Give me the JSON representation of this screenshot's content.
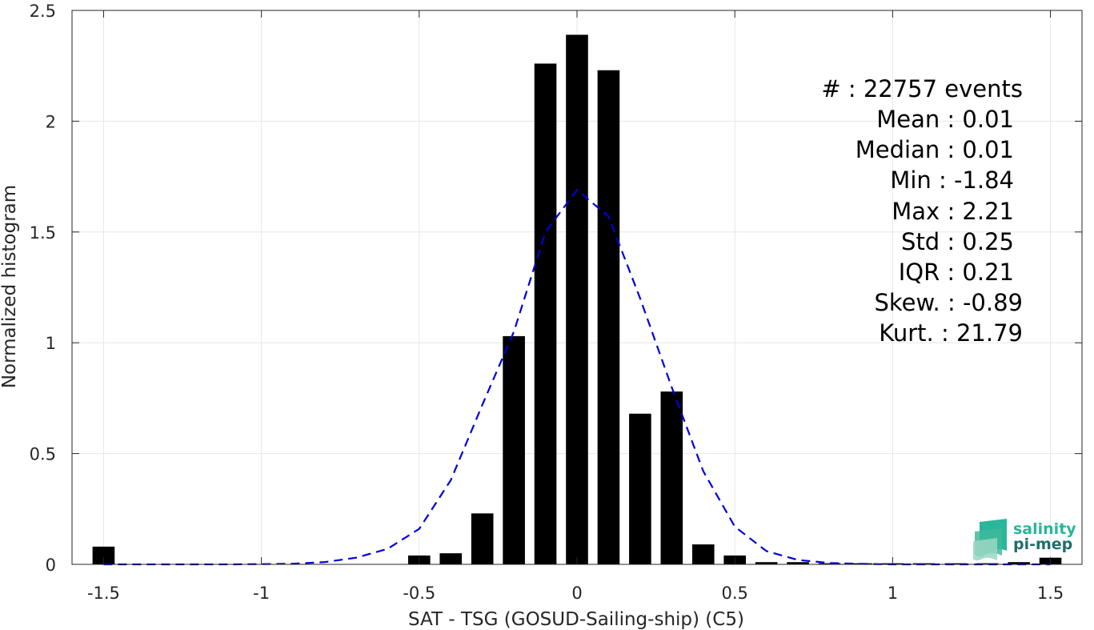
{
  "chart_data": {
    "type": "bar",
    "xlabel": "SAT - TSG (GOSUD-Sailing-ship) (C5)",
    "ylabel": "Normalized histogram",
    "xlim": [
      -1.6,
      1.6
    ],
    "ylim": [
      0,
      2.5
    ],
    "xticks": [
      -1.5,
      -1,
      -0.5,
      0,
      0.5,
      1,
      1.5
    ],
    "xtick_labels": [
      "-1.5",
      "-1",
      "-0.5",
      "0",
      "0.5",
      "1",
      "1.5"
    ],
    "yticks": [
      0,
      0.5,
      1,
      1.5,
      2,
      2.5
    ],
    "ytick_labels": [
      "0",
      "0.5",
      "1",
      "1.5",
      "2",
      "2.5"
    ],
    "grid": true,
    "bar_width": 0.07,
    "bars": {
      "x": [
        -1.5,
        -0.5,
        -0.4,
        -0.3,
        -0.2,
        -0.1,
        0,
        0.1,
        0.2,
        0.3,
        0.4,
        0.5,
        0.6,
        0.7,
        0.8,
        0.9,
        1.0,
        1.1,
        1.2,
        1.3,
        1.4,
        1.5
      ],
      "values": [
        0.08,
        0.04,
        0.05,
        0.23,
        1.03,
        2.26,
        2.39,
        2.23,
        0.68,
        0.78,
        0.09,
        0.04,
        0.01,
        0.01,
        0.005,
        0.005,
        0.005,
        0.005,
        0.005,
        0.005,
        0.01,
        0.03
      ],
      "color": "#000000"
    },
    "fit_curve": {
      "style": "dashed",
      "color": "#0000dd",
      "x": [
        -1.5,
        -1.4,
        -1.3,
        -1.2,
        -1.1,
        -1.0,
        -0.9,
        -0.8,
        -0.7,
        -0.6,
        -0.5,
        -0.4,
        -0.3,
        -0.2,
        -0.1,
        0,
        0.1,
        0.2,
        0.3,
        0.4,
        0.5,
        0.6,
        0.7,
        0.8,
        0.9,
        1.0,
        1.1,
        1.2,
        1.3,
        1.4,
        1.5
      ],
      "y": [
        0,
        0,
        0,
        0,
        0,
        0.001,
        0.003,
        0.01,
        0.03,
        0.07,
        0.16,
        0.38,
        0.72,
        1.05,
        1.5,
        1.69,
        1.57,
        1.2,
        0.8,
        0.42,
        0.17,
        0.06,
        0.02,
        0.006,
        0.002,
        0,
        0,
        0,
        0,
        0,
        0
      ]
    }
  },
  "stats": [
    "#  : 22757 events",
    "Mean : 0.01",
    "Median : 0.01",
    "Min : -1.84",
    "Max : 2.21",
    "Std : 0.25",
    "IQR : 0.21",
    "Skew. : -0.89",
    "Kurt. : 21.79"
  ],
  "logo": {
    "line1": "salinity",
    "line2": "pi-mep",
    "color_top": "#2bb59a",
    "color_bottom": "#1e6f6a"
  }
}
